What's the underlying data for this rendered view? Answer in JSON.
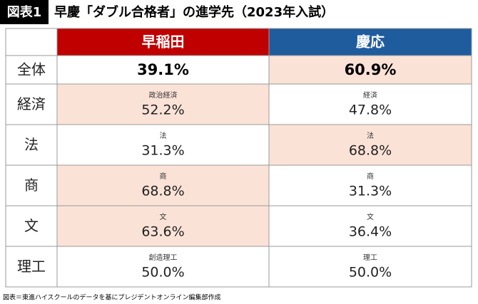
{
  "header": {
    "badge": "図表1",
    "title": "早慶「ダブル合格者」の進学先（2023年入試）"
  },
  "table": {
    "columns": [
      {
        "name": "早稲田",
        "color": "#c00000"
      },
      {
        "name": "慶応",
        "color": "#1f5c9e"
      }
    ],
    "highlight_color": "#fbe2d7",
    "rows": [
      {
        "label": "全体",
        "cells": [
          {
            "value": "39.1%",
            "highlight": false
          },
          {
            "value": "60.9%",
            "highlight": true
          }
        ]
      },
      {
        "label": "経済",
        "cells": [
          {
            "sub": "政治経済",
            "value": "52.2%",
            "highlight": true
          },
          {
            "sub": "経済",
            "value": "47.8%",
            "highlight": false
          }
        ]
      },
      {
        "label": "法",
        "cells": [
          {
            "sub": "法",
            "value": "31.3%",
            "highlight": false
          },
          {
            "sub": "法",
            "value": "68.8%",
            "highlight": true
          }
        ]
      },
      {
        "label": "商",
        "cells": [
          {
            "sub": "商",
            "value": "68.8%",
            "highlight": true
          },
          {
            "sub": "商",
            "value": "31.3%",
            "highlight": false
          }
        ]
      },
      {
        "label": "文",
        "cells": [
          {
            "sub": "文",
            "value": "63.6%",
            "highlight": true
          },
          {
            "sub": "文",
            "value": "36.4%",
            "highlight": false
          }
        ]
      },
      {
        "label": "理工",
        "cells": [
          {
            "sub": "創造理工",
            "value": "50.0%",
            "highlight": false
          },
          {
            "sub": "理工",
            "value": "50.0%",
            "highlight": false
          }
        ]
      }
    ]
  },
  "footer": {
    "source": "図表＝東進ハイスクールのデータを基にプレジデントオンライン編集部作成"
  }
}
